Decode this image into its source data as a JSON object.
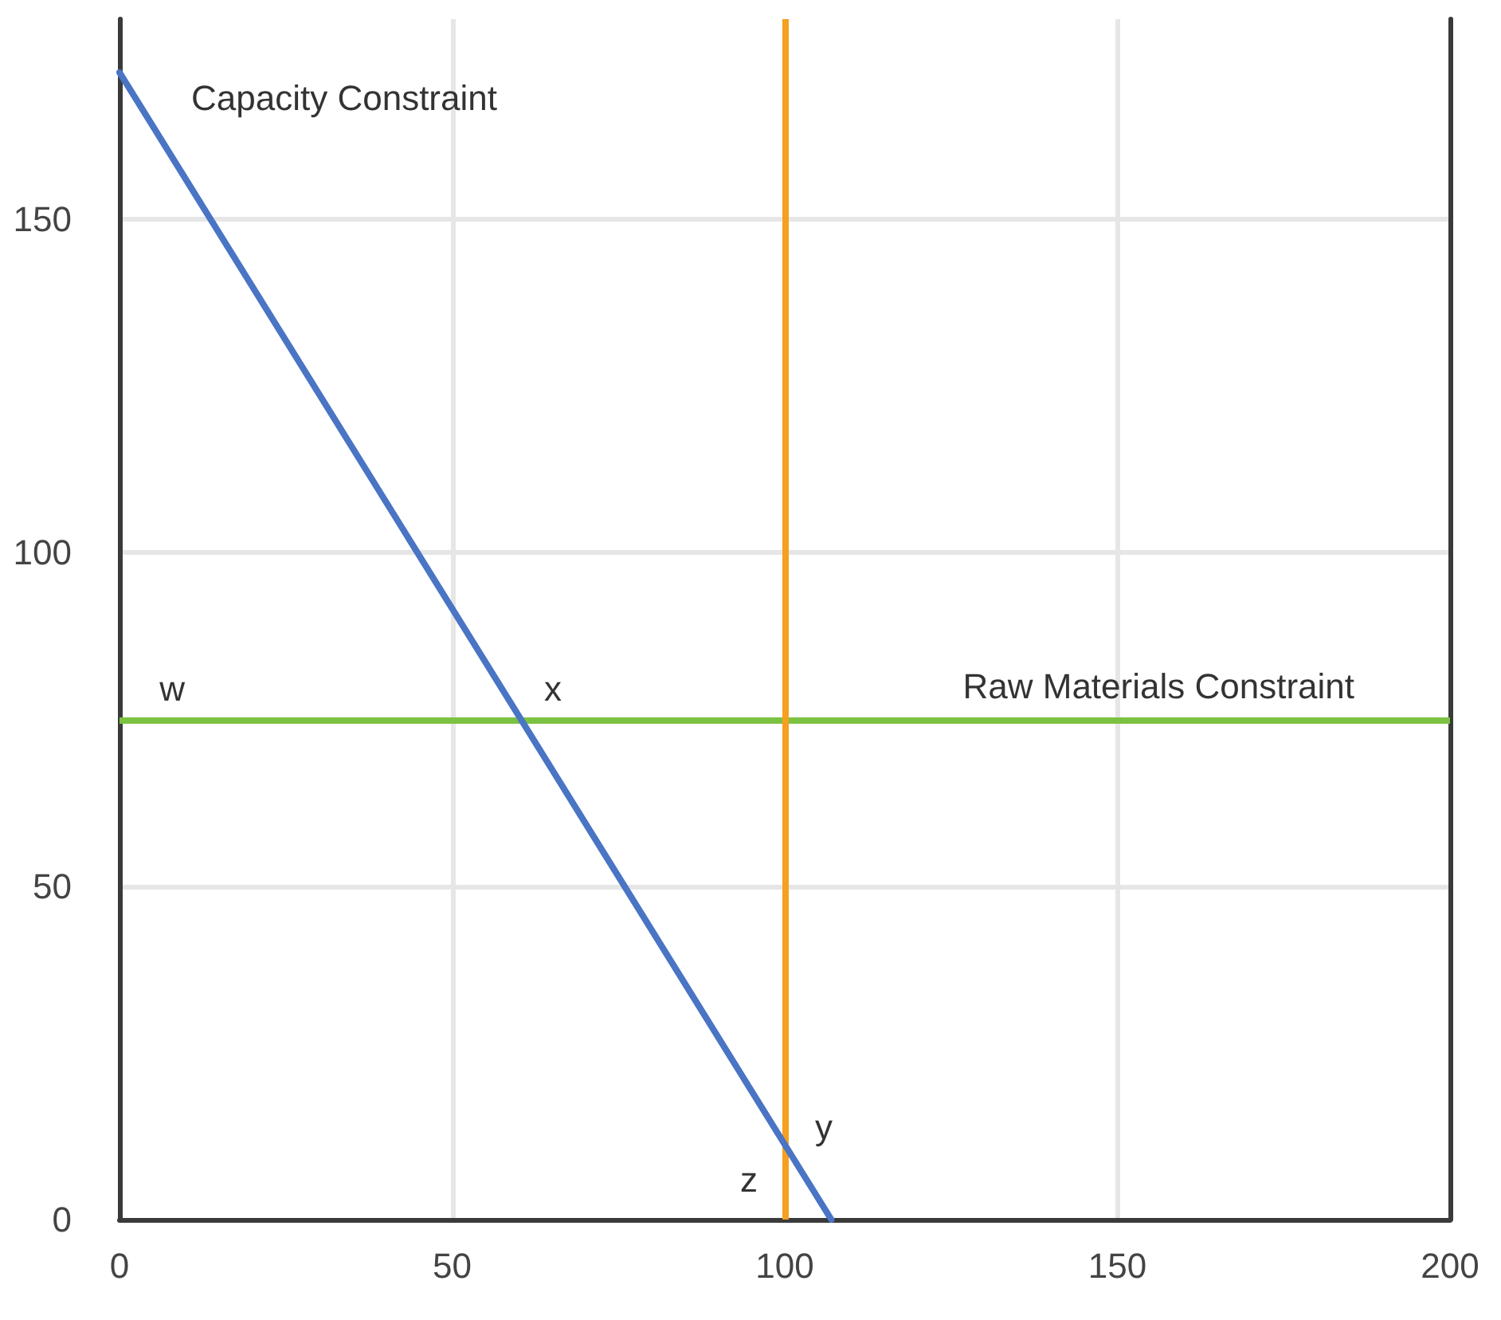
{
  "chart_data": {
    "type": "line",
    "xlim": [
      0,
      200
    ],
    "xticks": [
      0,
      50,
      100,
      150,
      200
    ],
    "ylim": [
      0,
      180
    ],
    "yticks": [
      0,
      50,
      100,
      150
    ],
    "grid": true,
    "marker": "none",
    "line_style": "solid",
    "series": [
      {
        "name": "Capacity Constraint",
        "color": "#4a74c4",
        "x": [
          0,
          107
        ],
        "values": [
          172,
          0
        ]
      }
    ],
    "ref_lines": [
      {
        "axis": "y",
        "value": 75,
        "label": "Raw Materials Constraint",
        "color": "#7cc242"
      },
      {
        "axis": "x",
        "value": 100,
        "color": "#f5a01f"
      }
    ],
    "annotations": [
      "w",
      "x",
      "y",
      "z"
    ]
  }
}
